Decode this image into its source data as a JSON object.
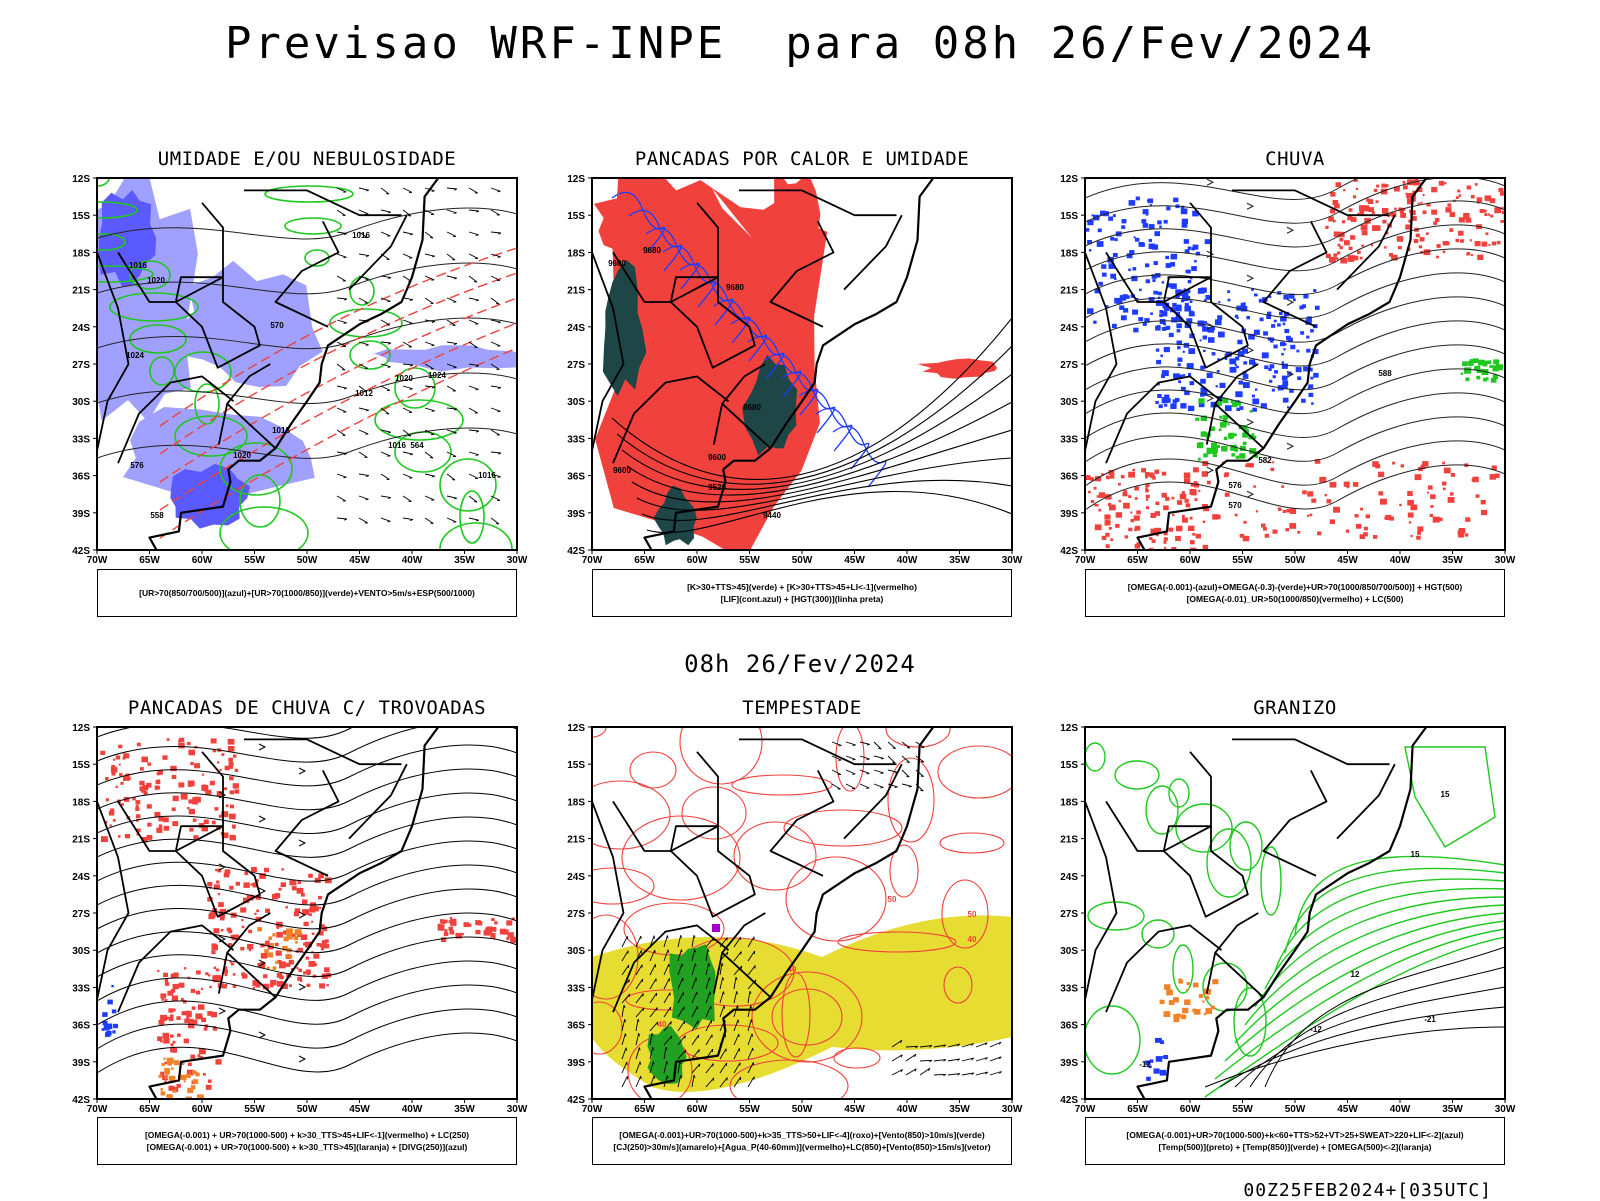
{
  "header": {
    "title": "Previsao WRF-INPE  para 08h 26/Fev/2024",
    "middle_title": "08h 26/Fev/2024",
    "footer": "00Z25FEB2024+[035UTC]"
  },
  "axes": {
    "lat_labels": [
      "12S",
      "15S",
      "18S",
      "21S",
      "24S",
      "27S",
      "30S",
      "33S",
      "36S",
      "39S",
      "42S"
    ],
    "lon_labels": [
      "70W",
      "65W",
      "60W",
      "55W",
      "50W",
      "45W",
      "40W",
      "35W",
      "30W"
    ]
  },
  "colors": {
    "green": "#1ec81e",
    "red": "#f0413c",
    "blue": "#1e3cff",
    "light_blue": "#a0a0ff",
    "dark_teal": "#1e4646",
    "yellow": "#e6dc32",
    "orange": "#f08228",
    "purple": "#a000c8"
  },
  "panels": [
    {
      "title": "UMIDADE E/OU NEBULOSIDADE",
      "legend": [
        "[UR>70(850/700/500)](azul)+[UR>70(1000/850)](verde)+VENTO>5m/s+ESP(500/1000)"
      ],
      "contour_labels": [
        "1016",
        "1016",
        "1020",
        "1024",
        "1012",
        "1020",
        "1016",
        "1018",
        "1024",
        "1020",
        "1016",
        "576",
        "570",
        "564",
        "558"
      ]
    },
    {
      "title": "PANCADAS POR CALOR E UMIDADE",
      "legend": [
        "[K>30+TTS>45](verde) + [K>30+TTS>45+LI<-1](vermelho)",
        "[LIF](cont.azul) + [HGT(300)](linha preta)"
      ],
      "contour_labels": [
        "9680",
        "9600",
        "9680",
        "9680",
        "9600",
        "9520",
        "9440",
        "9600"
      ]
    },
    {
      "title": "CHUVA",
      "legend": [
        "[OMEGA(-0.001)-(azul)+OMEGA(-0.3)-(verde)+UR>70(1000/850/700/500)] + HGT(500)",
        "[OMEGA(-0.01)_UR>50(1000/850)(vermelho) + LC(500)"
      ],
      "contour_labels": [
        "588",
        "582",
        "576",
        "570"
      ]
    },
    {
      "title": "PANCADAS DE CHUVA C/ TROVOADAS",
      "legend": [
        "[OMEGA(-0.001) + UR>70(1000-500) + k>30_TTS>45+LIF<-1](vermelho) + LC(250)",
        "[OMEGA(-0.001) + UR>70(1000-500) + k>30_TTS>45](laranja) + [DIVG(250)](azul)"
      ],
      "contour_labels": []
    },
    {
      "title": "TEMPESTADE",
      "legend": [
        "[OMEGA(-0.001)+UR>70(1000-500)+k>35_TTS>50+LIF<-4](roxo)+[Vento(850)>10m/s](verde)",
        "[CJ(250)>30m/s](amarelo)+[Agua_P(40-60mm)](vermelho)+LC(850)+[Vento(850)>15m/s](vetor)"
      ],
      "contour_labels": [
        "40",
        "40",
        "50",
        "50",
        "40"
      ]
    },
    {
      "title": "GRANIZO",
      "legend": [
        "[OMEGA(-0.001)+UR>70(1000-500)+k<60+TTS>52+VT>25+SWEAT>220+LIF<-2](azul)",
        "[Temp(500)](preto) + [Temp(850)](verde) + [OMEGA(500)<-2](laranja)"
      ],
      "contour_labels": [
        "-12",
        "-12",
        "-21",
        "15",
        "15",
        "12"
      ]
    }
  ]
}
